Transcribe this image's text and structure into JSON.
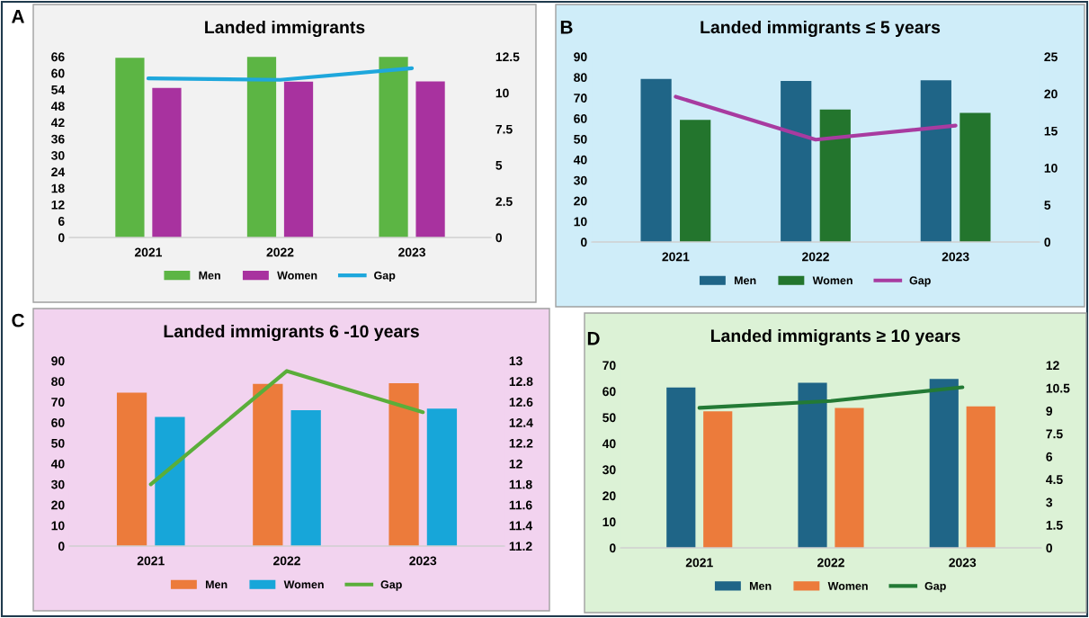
{
  "chart_data": [
    {
      "type": "bar",
      "title": "Landed immigrants",
      "annotations": [
        "A"
      ],
      "categories": [
        "2021",
        "2022",
        "2023"
      ],
      "ylim": [
        0,
        66
      ],
      "yticks": [
        0,
        6,
        12,
        18,
        24,
        30,
        36,
        42,
        48,
        54,
        60,
        66
      ],
      "y2lim": [
        0,
        12.5
      ],
      "y2ticks": [
        0,
        2.5,
        5,
        7.5,
        10,
        12.5
      ],
      "legend": "bottom",
      "grid": false,
      "series": [
        {
          "name": "Men",
          "color": "#5cb544",
          "values": [
            65.6,
            65.9,
            65.9
          ]
        },
        {
          "name": "Women",
          "color": "#a8329f",
          "values": [
            54.6,
            56.9,
            57.0
          ]
        },
        {
          "name": "Gap",
          "type": "line",
          "axis": "y2",
          "color": "#1ea7dc",
          "values": [
            11.0,
            10.9,
            11.7
          ]
        }
      ]
    },
    {
      "type": "bar",
      "title": "Landed immigrants ≤ 5 years",
      "annotations": [
        "B"
      ],
      "categories": [
        "2021",
        "2022",
        "2023"
      ],
      "ylim": [
        0,
        90
      ],
      "yticks": [
        0,
        10,
        20,
        30,
        40,
        50,
        60,
        70,
        80,
        90
      ],
      "y2lim": [
        0,
        25
      ],
      "y2ticks": [
        0,
        5,
        10,
        15,
        20,
        25
      ],
      "legend": "bottom",
      "grid": false,
      "series": [
        {
          "name": "Men",
          "color": "#1f6587",
          "values": [
            79.2,
            78.2,
            78.5
          ]
        },
        {
          "name": "Women",
          "color": "#23752d",
          "values": [
            59.3,
            64.3,
            62.7
          ]
        },
        {
          "name": "Gap",
          "type": "line",
          "axis": "y2",
          "color": "#a83ba0",
          "values": [
            19.6,
            13.8,
            15.7
          ]
        }
      ]
    },
    {
      "type": "bar",
      "title": "Landed immigrants 6 -10 years",
      "annotations": [
        "C"
      ],
      "categories": [
        "2021",
        "2022",
        "2023"
      ],
      "ylim": [
        0,
        90
      ],
      "yticks": [
        0,
        10,
        20,
        30,
        40,
        50,
        60,
        70,
        80,
        90
      ],
      "y2lim": [
        11.2,
        13
      ],
      "y2ticks": [
        11.2,
        11.4,
        11.6,
        11.8,
        12,
        12.2,
        12.4,
        12.6,
        12.8,
        13
      ],
      "legend": "bottom",
      "grid": false,
      "series": [
        {
          "name": "Men",
          "color": "#ec7b3b",
          "values": [
            74.5,
            78.8,
            79.1
          ]
        },
        {
          "name": "Women",
          "color": "#17a6d9",
          "values": [
            62.7,
            66.0,
            66.7
          ]
        },
        {
          "name": "Gap",
          "type": "line",
          "axis": "y2",
          "color": "#5aae3a",
          "values": [
            11.8,
            12.9,
            12.5
          ]
        }
      ]
    },
    {
      "type": "bar",
      "title": "Landed immigrants ≥ 10 years",
      "annotations": [
        "D"
      ],
      "categories": [
        "2021",
        "2022",
        "2023"
      ],
      "ylim": [
        0,
        70
      ],
      "yticks": [
        0,
        10,
        20,
        30,
        40,
        50,
        60,
        70
      ],
      "y2lim": [
        0,
        12
      ],
      "y2ticks": [
        0,
        1.5,
        3,
        4.5,
        6,
        7.5,
        9,
        10.5,
        12
      ],
      "legend": "bottom",
      "grid": false,
      "series": [
        {
          "name": "Men",
          "color": "#1f6587",
          "values": [
            61.5,
            63.3,
            64.7
          ]
        },
        {
          "name": "Women",
          "color": "#ec7b3b",
          "values": [
            52.3,
            53.6,
            54.2
          ]
        },
        {
          "name": "Gap",
          "type": "line",
          "axis": "y2",
          "color": "#237a35",
          "values": [
            9.2,
            9.65,
            10.55
          ]
        }
      ]
    }
  ]
}
